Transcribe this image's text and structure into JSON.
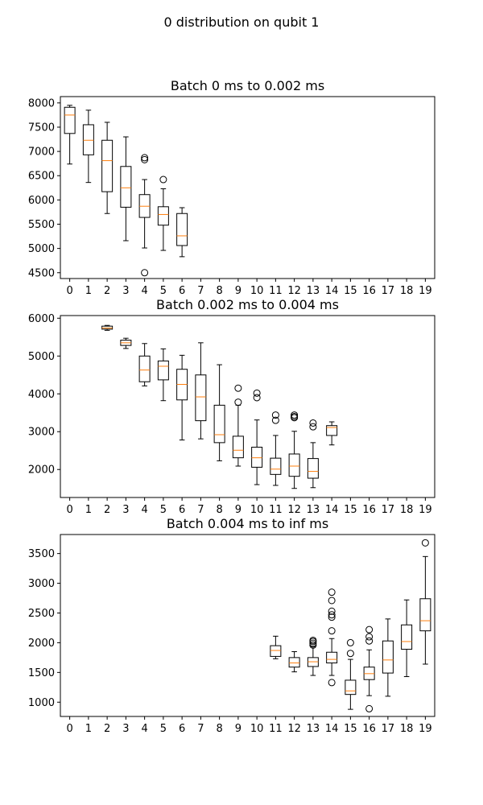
{
  "suptitle": "0 distribution on qubit 1",
  "chart_data": [
    {
      "type": "box",
      "title": "Batch 0 ms to 0.002 ms",
      "categories": [
        "0",
        "1",
        "2",
        "3",
        "4",
        "5",
        "6",
        "7",
        "8",
        "9",
        "10",
        "11",
        "12",
        "13",
        "14",
        "15",
        "16",
        "17",
        "18",
        "19"
      ],
      "yticks": [
        4500,
        5000,
        5500,
        6000,
        6500,
        7000,
        7500,
        8000
      ],
      "ylim": [
        4380,
        8130
      ],
      "boxes": [
        {
          "x": 0,
          "whislo": 6740,
          "q1": 7370,
          "med": 7750,
          "q3": 7910,
          "whishi": 7950,
          "fliers": []
        },
        {
          "x": 1,
          "whislo": 6360,
          "q1": 6930,
          "med": 7230,
          "q3": 7550,
          "whishi": 7850,
          "fliers": []
        },
        {
          "x": 2,
          "whislo": 5720,
          "q1": 6170,
          "med": 6810,
          "q3": 7230,
          "whishi": 7600,
          "fliers": []
        },
        {
          "x": 3,
          "whislo": 5160,
          "q1": 5850,
          "med": 6250,
          "q3": 6690,
          "whishi": 7300,
          "fliers": []
        },
        {
          "x": 4,
          "whislo": 5010,
          "q1": 5640,
          "med": 5870,
          "q3": 6110,
          "whishi": 6420,
          "fliers": [
            6830,
            6870,
            4500
          ]
        },
        {
          "x": 5,
          "whislo": 4960,
          "q1": 5480,
          "med": 5700,
          "q3": 5860,
          "whishi": 6230,
          "fliers": [
            6420
          ]
        },
        {
          "x": 6,
          "whislo": 4830,
          "q1": 5060,
          "med": 5260,
          "q3": 5720,
          "whishi": 5840,
          "fliers": []
        }
      ]
    },
    {
      "type": "box",
      "title": "Batch 0.002 ms to 0.004 ms",
      "categories": [
        "0",
        "1",
        "2",
        "3",
        "4",
        "5",
        "6",
        "7",
        "8",
        "9",
        "10",
        "11",
        "12",
        "13",
        "14",
        "15",
        "16",
        "17",
        "18",
        "19"
      ],
      "yticks": [
        2000,
        3000,
        4000,
        5000,
        6000
      ],
      "ylim": [
        1260,
        6070
      ],
      "boxes": [
        {
          "x": 2,
          "whislo": 5680,
          "q1": 5710,
          "med": 5740,
          "q3": 5790,
          "whishi": 5810,
          "fliers": []
        },
        {
          "x": 3,
          "whislo": 5200,
          "q1": 5280,
          "med": 5350,
          "q3": 5420,
          "whishi": 5470,
          "fliers": []
        },
        {
          "x": 4,
          "whislo": 4210,
          "q1": 4320,
          "med": 4630,
          "q3": 5000,
          "whishi": 5330,
          "fliers": []
        },
        {
          "x": 5,
          "whislo": 3820,
          "q1": 4370,
          "med": 4730,
          "q3": 4870,
          "whishi": 5190,
          "fliers": []
        },
        {
          "x": 6,
          "whislo": 2780,
          "q1": 3840,
          "med": 4250,
          "q3": 4650,
          "whishi": 5020,
          "fliers": []
        },
        {
          "x": 7,
          "whislo": 2810,
          "q1": 3290,
          "med": 3920,
          "q3": 4500,
          "whishi": 5350,
          "fliers": []
        },
        {
          "x": 8,
          "whislo": 2230,
          "q1": 2710,
          "med": 2920,
          "q3": 3700,
          "whishi": 4770,
          "fliers": []
        },
        {
          "x": 9,
          "whislo": 2090,
          "q1": 2310,
          "med": 2510,
          "q3": 2880,
          "whishi": 3700,
          "fliers": [
            4150,
            3780
          ]
        },
        {
          "x": 10,
          "whislo": 1600,
          "q1": 2060,
          "med": 2310,
          "q3": 2590,
          "whishi": 3310,
          "fliers": [
            4020,
            3900
          ]
        },
        {
          "x": 11,
          "whislo": 1580,
          "q1": 1870,
          "med": 2010,
          "q3": 2300,
          "whishi": 2900,
          "fliers": [
            3440,
            3300
          ]
        },
        {
          "x": 12,
          "whislo": 1500,
          "q1": 1820,
          "med": 2090,
          "q3": 2410,
          "whishi": 3010,
          "fliers": [
            3440,
            3400,
            3370
          ]
        },
        {
          "x": 13,
          "whislo": 1520,
          "q1": 1770,
          "med": 1950,
          "q3": 2290,
          "whishi": 2710,
          "fliers": [
            3230,
            3130
          ]
        },
        {
          "x": 14,
          "whislo": 2650,
          "q1": 2900,
          "med": 3110,
          "q3": 3160,
          "whishi": 3260,
          "fliers": []
        }
      ]
    },
    {
      "type": "box",
      "title": "Batch 0.004 ms to inf ms",
      "categories": [
        "0",
        "1",
        "2",
        "3",
        "4",
        "5",
        "6",
        "7",
        "8",
        "9",
        "10",
        "11",
        "12",
        "13",
        "14",
        "15",
        "16",
        "17",
        "18",
        "19"
      ],
      "yticks": [
        1000,
        1500,
        2000,
        2500,
        3000,
        3500
      ],
      "ylim": [
        760,
        3820
      ],
      "boxes": [
        {
          "x": 11,
          "whislo": 1730,
          "q1": 1770,
          "med": 1870,
          "q3": 1950,
          "whishi": 2110,
          "fliers": []
        },
        {
          "x": 12,
          "whislo": 1510,
          "q1": 1590,
          "med": 1660,
          "q3": 1750,
          "whishi": 1850,
          "fliers": []
        },
        {
          "x": 13,
          "whislo": 1450,
          "q1": 1600,
          "med": 1680,
          "q3": 1750,
          "whishi": 1930,
          "fliers": [
            1960,
            1990,
            2020,
            2040
          ]
        },
        {
          "x": 14,
          "whislo": 1450,
          "q1": 1660,
          "med": 1720,
          "q3": 1840,
          "whishi": 2070,
          "fliers": [
            2850,
            2710,
            2530,
            2470,
            2430,
            2200,
            1330
          ]
        },
        {
          "x": 15,
          "whislo": 880,
          "q1": 1130,
          "med": 1190,
          "q3": 1370,
          "whishi": 1720,
          "fliers": [
            2000,
            1820
          ]
        },
        {
          "x": 16,
          "whislo": 1110,
          "q1": 1380,
          "med": 1480,
          "q3": 1590,
          "whishi": 1880,
          "fliers": [
            2220,
            2100,
            2030,
            890
          ]
        },
        {
          "x": 17,
          "whislo": 1100,
          "q1": 1490,
          "med": 1710,
          "q3": 2030,
          "whishi": 2400,
          "fliers": []
        },
        {
          "x": 18,
          "whislo": 1430,
          "q1": 1890,
          "med": 2020,
          "q3": 2300,
          "whishi": 2720,
          "fliers": []
        },
        {
          "x": 19,
          "whislo": 1640,
          "q1": 2200,
          "med": 2370,
          "q3": 2740,
          "whishi": 3450,
          "fliers": [
            3680
          ]
        }
      ]
    }
  ]
}
